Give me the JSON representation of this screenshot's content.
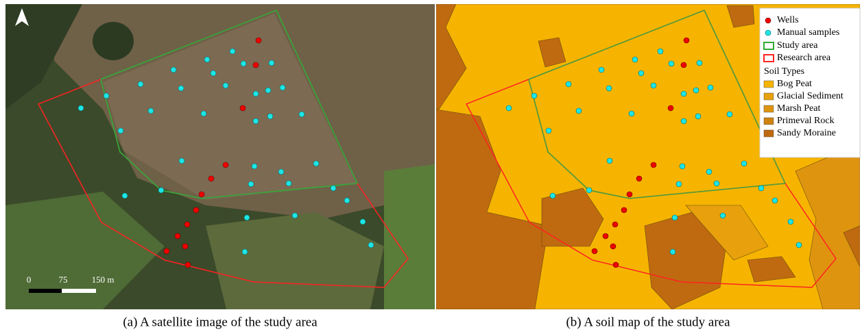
{
  "panels": [
    {
      "scale_labels": [
        "0",
        "75",
        "150 m"
      ],
      "caption": "(a) A satellite image of the study area"
    },
    {
      "legend": {
        "items": [
          "Wells",
          "Manual samples",
          "Study area",
          "Research area"
        ],
        "soil_title": "Soil Types",
        "soil_types": [
          "Bog Peat",
          "Glacial Sediment",
          "Marsh Peat",
          "Primeval Rock",
          "Sandy Moraine"
        ]
      },
      "caption": "(b) A soil map of the study area"
    }
  ]
}
